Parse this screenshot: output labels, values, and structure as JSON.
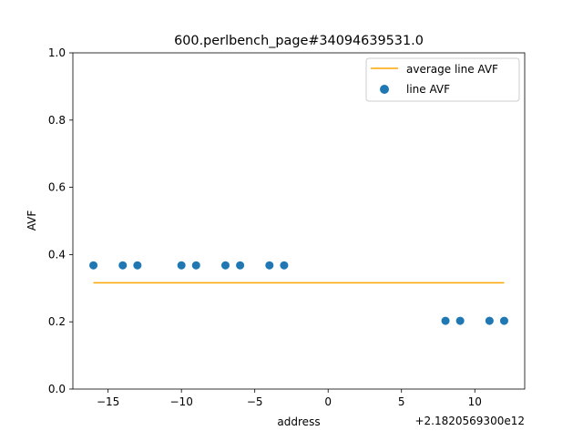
{
  "chart_data": {
    "type": "scatter",
    "title": "600.perlbench_page#34094639531.0",
    "xlabel": "address",
    "ylabel": "AVF",
    "x_offset_label": "+2.1820569300e12",
    "xlim": [
      -17.4,
      13.4
    ],
    "ylim": [
      0.0,
      1.0
    ],
    "x_ticks": [
      -15,
      -10,
      -5,
      0,
      5,
      10
    ],
    "x_tick_labels": [
      "−15",
      "−10",
      "−5",
      "0",
      "5",
      "10"
    ],
    "y_ticks": [
      0.0,
      0.2,
      0.4,
      0.6,
      0.8,
      1.0
    ],
    "y_tick_labels": [
      "0.0",
      "0.2",
      "0.4",
      "0.6",
      "0.8",
      "1.0"
    ],
    "grid": false,
    "legend_position": "upper right",
    "series": [
      {
        "name": "average line AVF",
        "kind": "line",
        "color": "#ffa500",
        "x": [
          -16,
          12
        ],
        "y": [
          0.316,
          0.316
        ]
      },
      {
        "name": "line AVF",
        "kind": "scatter",
        "color": "#1f77b4",
        "x": [
          -16,
          -14,
          -13,
          -10,
          -9,
          -7,
          -6,
          -4,
          -3,
          8,
          9,
          11,
          12
        ],
        "y": [
          0.368,
          0.368,
          0.368,
          0.368,
          0.368,
          0.368,
          0.368,
          0.368,
          0.368,
          0.203,
          0.203,
          0.203,
          0.203
        ]
      }
    ]
  }
}
